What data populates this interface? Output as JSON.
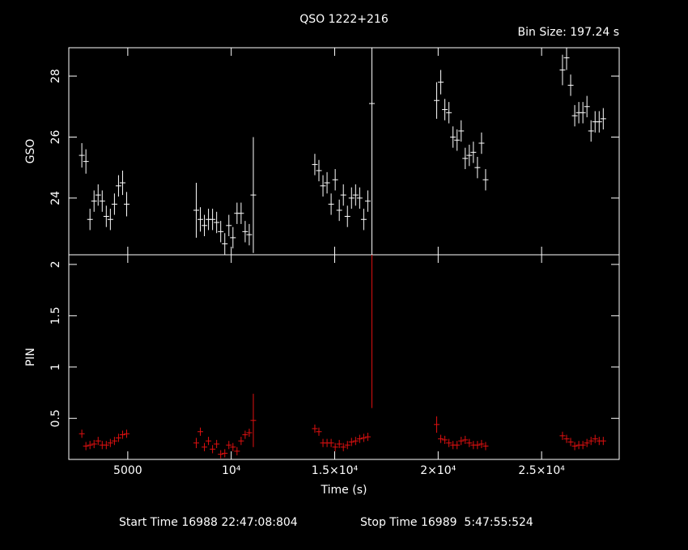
{
  "chart_data": {
    "type": "errorbar",
    "title": "QSO 1222+216",
    "subtitle": "Bin Size: 197.24 s",
    "x_label": "Time (s)",
    "xlim": [
      2150,
      28750
    ],
    "xticks": [
      5000,
      {
        "value": 10000,
        "label": "10⁴"
      },
      {
        "value": 15000,
        "label": "1.5×10⁴"
      },
      {
        "value": 20000,
        "label": "2×10⁴"
      },
      {
        "value": 25000,
        "label": "2.5×10⁴"
      }
    ],
    "x": [
      2780,
      2977,
      3174,
      3371,
      3568,
      3765,
      3962,
      4159,
      4356,
      4553,
      4750,
      4947,
      8310,
      8507,
      8704,
      8901,
      9098,
      9295,
      9492,
      9689,
      9886,
      10083,
      10280,
      10477,
      10674,
      10871,
      11068,
      14040,
      14237,
      14434,
      14631,
      14828,
      15025,
      15222,
      15419,
      15616,
      15813,
      16010,
      16207,
      16404,
      16601,
      16798,
      19930,
      20127,
      20324,
      20521,
      20718,
      20915,
      21112,
      21309,
      21506,
      21703,
      21900,
      22097,
      22294,
      26010,
      26207,
      26404,
      26601,
      26798,
      26995,
      27192,
      27389,
      27586,
      27783,
      27980
    ],
    "panels": [
      {
        "y_label": "GSO",
        "color": "#ffffff",
        "ylim": [
          22.14,
          28.93
        ],
        "yticks": [
          24,
          26,
          28
        ],
        "values": [
          25.4,
          25.2,
          23.3,
          23.9,
          24.1,
          23.9,
          23.4,
          23.3,
          23.8,
          24.4,
          24.5,
          23.8,
          23.6,
          23.3,
          23.1,
          23.3,
          23.3,
          23.2,
          22.9,
          22.5,
          23.1,
          22.7,
          23.5,
          23.5,
          22.9,
          22.8,
          24.1,
          25.1,
          24.9,
          24.4,
          24.5,
          23.8,
          24.6,
          23.6,
          24.1,
          23.4,
          24.0,
          24.1,
          24.0,
          23.3,
          23.9,
          27.1,
          27.2,
          27.8,
          26.9,
          26.8,
          26.0,
          25.9,
          26.2,
          25.3,
          25.4,
          25.5,
          25.0,
          25.8,
          24.6,
          28.2,
          28.6,
          27.7,
          26.7,
          26.8,
          26.8,
          27.0,
          26.2,
          26.5,
          26.5,
          26.6
        ],
        "errors": [
          0.4,
          0.4,
          0.35,
          0.35,
          0.35,
          0.35,
          0.35,
          0.35,
          0.35,
          0.35,
          0.4,
          0.4,
          0.9,
          0.4,
          0.35,
          0.35,
          0.35,
          0.35,
          0.35,
          0.35,
          0.35,
          0.35,
          0.35,
          0.35,
          0.35,
          0.35,
          1.9,
          0.35,
          0.35,
          0.35,
          0.35,
          0.35,
          0.35,
          0.35,
          0.35,
          0.35,
          0.35,
          0.35,
          0.35,
          0.35,
          0.35,
          5,
          0.6,
          0.4,
          0.35,
          0.35,
          0.35,
          0.35,
          0.35,
          0.35,
          0.35,
          0.35,
          0.35,
          0.35,
          0.35,
          0.5,
          0.4,
          0.35,
          0.35,
          0.35,
          0.35,
          0.35,
          0.35,
          0.35,
          0.35,
          0.35
        ]
      },
      {
        "y_label": "PIN",
        "color": "#e01010",
        "ylim": [
          0.1,
          2.094
        ],
        "yticks": [
          0.5,
          1,
          1.5,
          2
        ],
        "values": [
          0.35,
          0.23,
          0.24,
          0.25,
          0.28,
          0.24,
          0.24,
          0.26,
          0.28,
          0.31,
          0.34,
          0.35,
          0.26,
          0.37,
          0.22,
          0.28,
          0.2,
          0.25,
          0.15,
          0.16,
          0.24,
          0.22,
          0.18,
          0.28,
          0.34,
          0.36,
          0.48,
          0.4,
          0.37,
          0.26,
          0.26,
          0.26,
          0.22,
          0.25,
          0.22,
          0.24,
          0.27,
          0.28,
          0.3,
          0.31,
          0.32,
          2.1,
          0.44,
          0.3,
          0.29,
          0.26,
          0.24,
          0.24,
          0.28,
          0.29,
          0.26,
          0.24,
          0.24,
          0.25,
          0.23,
          0.33,
          0.3,
          0.27,
          0.23,
          0.24,
          0.24,
          0.26,
          0.28,
          0.3,
          0.28,
          0.28
        ],
        "errors": [
          0.04,
          0.04,
          0.04,
          0.04,
          0.04,
          0.04,
          0.04,
          0.04,
          0.04,
          0.04,
          0.04,
          0.04,
          0.05,
          0.04,
          0.04,
          0.04,
          0.04,
          0.04,
          0.04,
          0.04,
          0.04,
          0.04,
          0.04,
          0.04,
          0.04,
          0.04,
          0.26,
          0.04,
          0.04,
          0.04,
          0.04,
          0.04,
          0.04,
          0.04,
          0.04,
          0.04,
          0.04,
          0.04,
          0.04,
          0.04,
          0.04,
          1.5,
          0.08,
          0.04,
          0.04,
          0.04,
          0.04,
          0.04,
          0.04,
          0.04,
          0.04,
          0.04,
          0.04,
          0.04,
          0.04,
          0.04,
          0.04,
          0.04,
          0.04,
          0.04,
          0.04,
          0.04,
          0.04,
          0.04,
          0.04,
          0.04
        ]
      }
    ]
  },
  "footer": {
    "start": "Start Time 16988 22:47:08:804",
    "stop": "Stop Time 16989  5:47:55:524"
  }
}
